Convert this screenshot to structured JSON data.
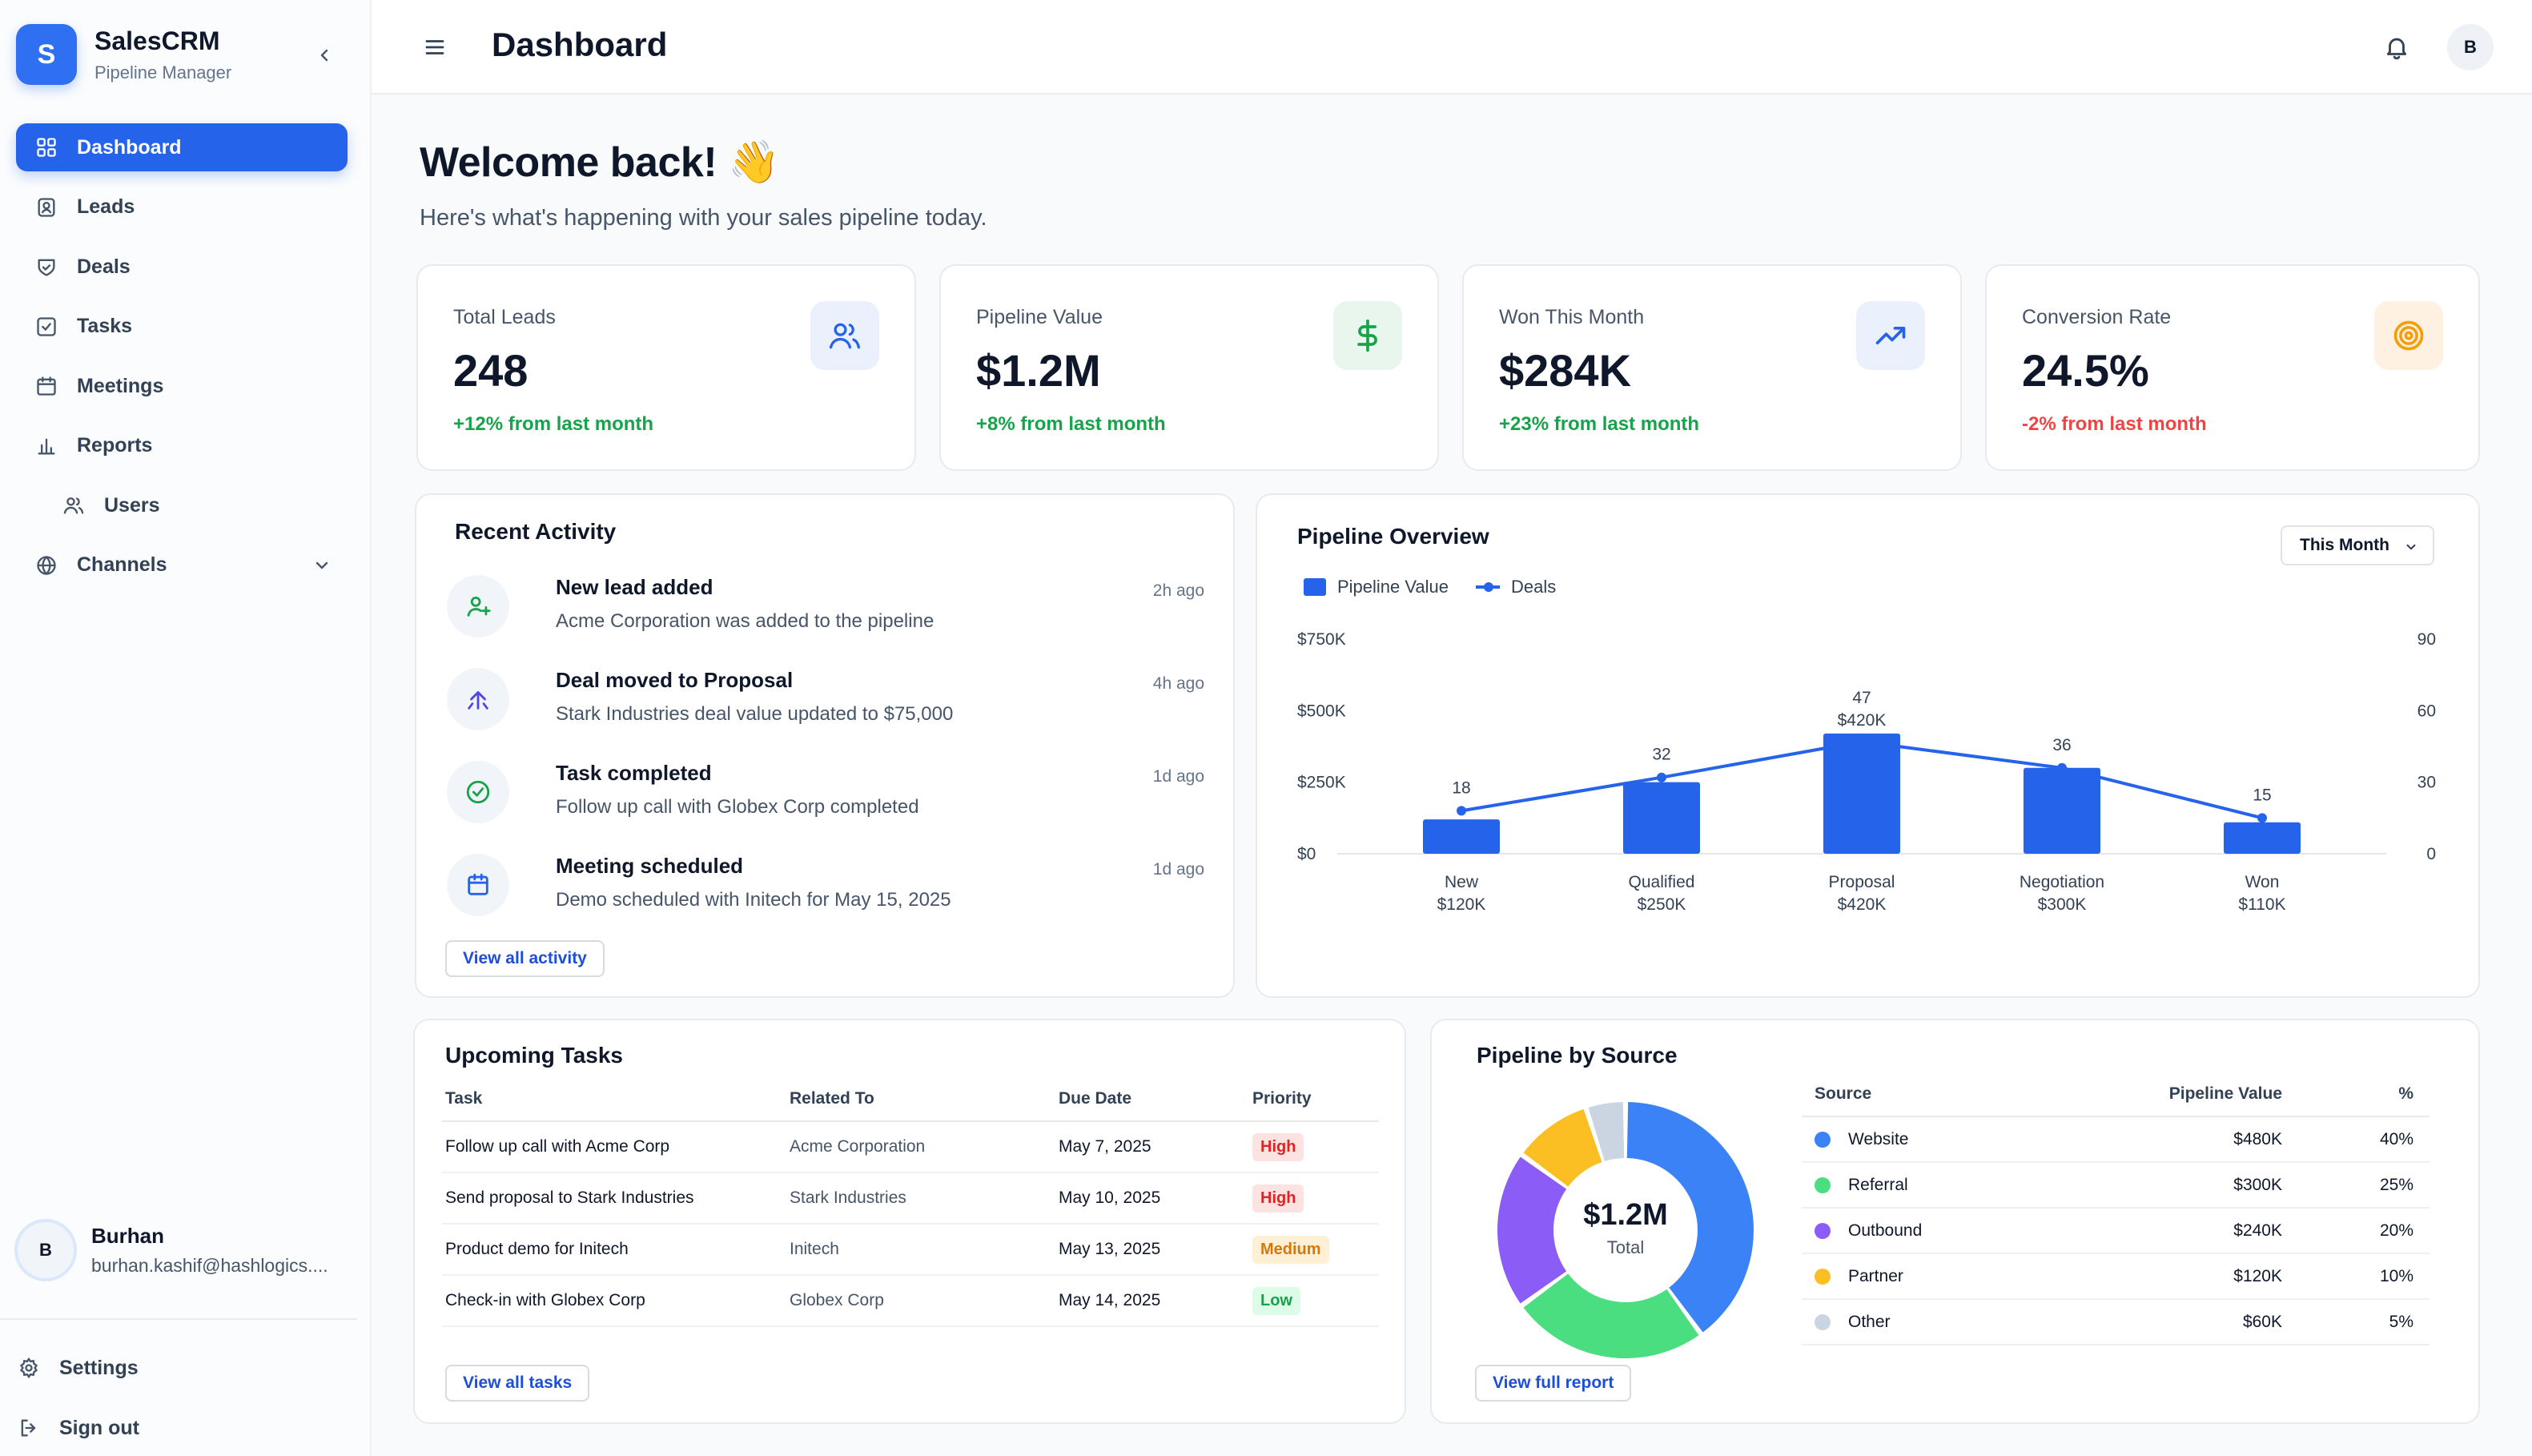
{
  "brand": {
    "initial": "S",
    "name": "SalesCRM",
    "subtitle": "Pipeline Manager"
  },
  "sidebar": {
    "items": [
      {
        "label": "Dashboard",
        "icon": "grid-icon",
        "active": true
      },
      {
        "label": "Leads",
        "icon": "contact-icon"
      },
      {
        "label": "Deals",
        "icon": "handshake-icon"
      },
      {
        "label": "Tasks",
        "icon": "checkbox-icon"
      },
      {
        "label": "Meetings",
        "icon": "calendar-icon"
      },
      {
        "label": "Reports",
        "icon": "bar-chart-icon"
      },
      {
        "label": "Users",
        "icon": "users-icon"
      },
      {
        "label": "Channels",
        "icon": "globe-icon"
      }
    ],
    "bottom": [
      {
        "label": "Settings",
        "icon": "gear-icon"
      },
      {
        "label": "Sign out",
        "icon": "logout-icon"
      }
    ]
  },
  "user": {
    "initial": "B",
    "name": "Burhan",
    "email": "burhan.kashif@hashlogics...."
  },
  "header": {
    "title": "Dashboard",
    "avatar_initial": "B"
  },
  "welcome": {
    "title": "Welcome back! 👋",
    "subtitle": "Here's what's happening with your sales pipeline today."
  },
  "stats": [
    {
      "label": "Total Leads",
      "value": "248",
      "change": "+12% from last month",
      "change_color": "#16a34a",
      "icon": "users-icon",
      "icon_bg": "#eaf1fd",
      "icon_color": "#2563eb"
    },
    {
      "label": "Pipeline Value",
      "value": "$1.2M",
      "change": "+8% from last month",
      "change_color": "#16a34a",
      "icon": "dollar-icon",
      "icon_bg": "#e8f6ee",
      "icon_color": "#16a34a"
    },
    {
      "label": "Won This Month",
      "value": "$284K",
      "change": "+23% from last month",
      "change_color": "#16a34a",
      "icon": "trending-up-icon",
      "icon_bg": "#eaf1fd",
      "icon_color": "#2563eb"
    },
    {
      "label": "Conversion Rate",
      "value": "24.5%",
      "change": "-2% from last month",
      "change_color": "#ef4444",
      "icon": "target-icon",
      "icon_bg": "#fff1e2",
      "icon_color": "#f59e0b"
    }
  ],
  "activity": {
    "title": "Recent Activity",
    "items": [
      {
        "title": "New lead added",
        "desc": "Acme Corporation was added to the pipeline",
        "time": "2h ago",
        "icon": "user-plus-icon",
        "color": "#16a34a"
      },
      {
        "title": "Deal moved to Proposal",
        "desc": "Stark Industries deal value updated to $75,000",
        "time": "4h ago",
        "icon": "arrow-up-icon",
        "color": "#4f46e5"
      },
      {
        "title": "Task completed",
        "desc": "Follow up call with Globex Corp completed",
        "time": "1d ago",
        "icon": "check-circle-icon",
        "color": "#16a34a"
      },
      {
        "title": "Meeting scheduled",
        "desc": "Demo scheduled with Initech for May 15, 2025",
        "time": "1d ago",
        "icon": "calendar-icon",
        "color": "#2563eb"
      }
    ],
    "button": "View all activity"
  },
  "pipeline_overview": {
    "title": "Pipeline Overview",
    "period": "This Month",
    "legend_bar": "Pipeline Value",
    "legend_line": "Deals"
  },
  "chart_data": {
    "type": "bar",
    "categories": [
      "New",
      "Qualified",
      "Proposal",
      "Negotiation",
      "Won"
    ],
    "category_values": [
      "$120K",
      "$250K",
      "$420K",
      "$300K",
      "$110K"
    ],
    "series": [
      {
        "name": "Pipeline Value",
        "type": "bar",
        "axis": "left",
        "values": [
          120000,
          250000,
          420000,
          300000,
          110000
        ],
        "color": "#2563eb"
      },
      {
        "name": "Deals",
        "type": "line",
        "axis": "right",
        "values": [
          18,
          32,
          47,
          36,
          15
        ],
        "color": "#2563eb"
      }
    ],
    "annotations": [
      {
        "category": "Proposal",
        "text": "$420K"
      }
    ],
    "y_left": {
      "ticks": [
        "$0",
        "$250K",
        "$500K",
        "$750K"
      ],
      "tick_values": [
        0,
        250000,
        500000,
        750000
      ],
      "range": [
        0,
        750000
      ]
    },
    "y_right": {
      "ticks": [
        "0",
        "30",
        "60",
        "90"
      ],
      "tick_values": [
        0,
        30,
        60,
        90
      ],
      "range": [
        0,
        90
      ]
    },
    "legend": "top-left",
    "grid": false
  },
  "tasks": {
    "title": "Upcoming Tasks",
    "columns": [
      "Task",
      "Related To",
      "Due Date",
      "Priority"
    ],
    "rows": [
      {
        "task": "Follow up call with Acme Corp",
        "related": "Acme Corporation",
        "due": "May 7, 2025",
        "priority": "High",
        "level": "high"
      },
      {
        "task": "Send proposal to Stark Industries",
        "related": "Stark Industries",
        "due": "May 10, 2025",
        "priority": "High",
        "level": "high"
      },
      {
        "task": "Product demo for Initech",
        "related": "Initech",
        "due": "May 13, 2025",
        "priority": "Medium",
        "level": "medium"
      },
      {
        "task": "Check-in with Globex Corp",
        "related": "Globex Corp",
        "due": "May 14, 2025",
        "priority": "Low",
        "level": "low"
      }
    ],
    "button": "View all tasks"
  },
  "sources": {
    "title": "Pipeline by Source",
    "center_value": "$1.2M",
    "center_label": "Total",
    "columns": [
      "Source",
      "Pipeline Value",
      "%"
    ],
    "rows": [
      {
        "name": "Website",
        "value": "$480K",
        "pct": "40%",
        "share": 40,
        "color": "#3b82f6"
      },
      {
        "name": "Referral",
        "value": "$300K",
        "pct": "25%",
        "share": 25,
        "color": "#4ade80"
      },
      {
        "name": "Outbound",
        "value": "$240K",
        "pct": "20%",
        "share": 20,
        "color": "#8b5cf6"
      },
      {
        "name": "Partner",
        "value": "$120K",
        "pct": "10%",
        "share": 10,
        "color": "#fbbf24"
      },
      {
        "name": "Other",
        "value": "$60K",
        "pct": "5%",
        "share": 5,
        "color": "#cbd5e1"
      }
    ],
    "button": "View full report"
  }
}
